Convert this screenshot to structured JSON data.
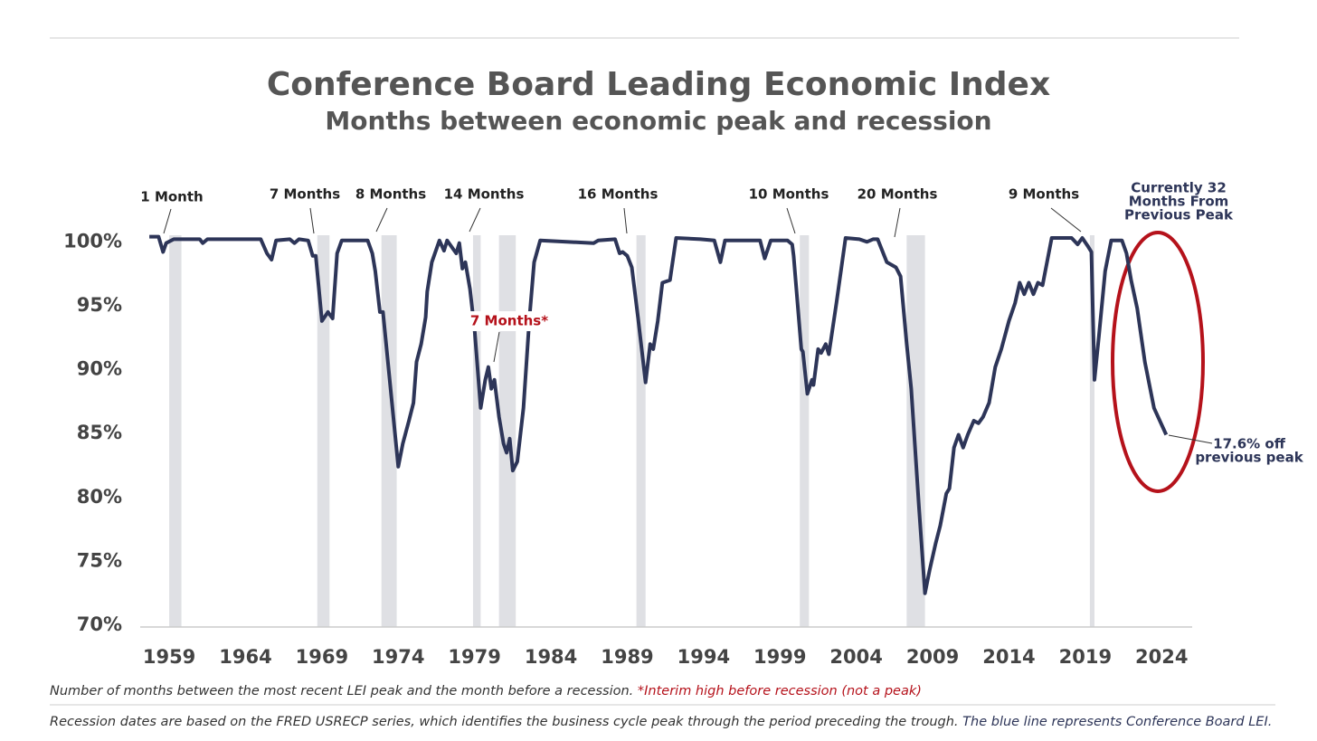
{
  "chart_data": {
    "type": "line",
    "title": "Conference Board Leading Economic  Index",
    "subtitle": "Months between economic peak and recession",
    "x": [
      1957.7,
      1958.3,
      1958.6,
      1958.8,
      1959.3,
      1961.0,
      1961.2,
      1961.5,
      1965.0,
      1965.4,
      1965.7,
      1966.0,
      1966.9,
      1967.2,
      1967.5,
      1968.1,
      1968.4,
      1968.6,
      1969.0,
      1969.4,
      1969.7,
      1970.0,
      1970.3,
      1972.0,
      1972.3,
      1972.5,
      1972.8,
      1973.0,
      1974.0,
      1974.3,
      1974.7,
      1975.0,
      1975.2,
      1975.5,
      1975.8,
      1975.9,
      1976.2,
      1976.7,
      1977.0,
      1977.2,
      1977.8,
      1978.0,
      1978.2,
      1978.4,
      1978.7,
      1979.0,
      1979.4,
      1979.7,
      1979.9,
      1980.1,
      1980.3,
      1980.6,
      1980.9,
      1981.1,
      1981.3,
      1981.5,
      1981.8,
      1982.2,
      1982.6,
      1982.9,
      1983.3,
      1986.8,
      1987.1,
      1988.2,
      1988.5,
      1988.7,
      1989.0,
      1989.3,
      1989.7,
      1990.2,
      1990.5,
      1990.7,
      1991.0,
      1991.3,
      1991.8,
      1992.2,
      1993.8,
      1994.7,
      1995.1,
      1995.4,
      1997.7,
      1998.0,
      1998.4,
      1999.5,
      1999.8,
      1999.9,
      2000.4,
      2000.5,
      2000.8,
      2001.1,
      2001.2,
      2001.5,
      2001.7,
      2002.0,
      2002.2,
      2002.7,
      2003.3,
      2004.2,
      2004.7,
      2005.1,
      2005.4,
      2006.0,
      2006.6,
      2006.9,
      2007.3,
      2007.6,
      2008.1,
      2008.5,
      2008.8,
      2009.2,
      2009.5,
      2009.9,
      2010.1,
      2010.4,
      2010.7,
      2011.0,
      2011.3,
      2011.7,
      2012.0,
      2012.3,
      2012.7,
      2013.1,
      2013.5,
      2014.0,
      2014.4,
      2014.7,
      2015.0,
      2015.3,
      2015.6,
      2015.9,
      2016.2,
      2016.8,
      2018.1,
      2018.5,
      2018.8,
      2019.2,
      2019.4,
      2019.6,
      2019.9,
      2020.3,
      2020.7,
      2021.4,
      2021.7,
      2022.0,
      2022.4,
      2022.9,
      2023.5,
      2024.3
    ],
    "values": [
      100.4,
      100.4,
      99.2,
      99.9,
      100.2,
      100.2,
      99.9,
      100.2,
      100.2,
      99.1,
      98.6,
      100.1,
      100.2,
      99.9,
      100.2,
      100.1,
      98.9,
      98.9,
      93.8,
      94.5,
      94.0,
      99.1,
      100.1,
      100.1,
      99.1,
      97.7,
      94.5,
      94.5,
      82.4,
      84.2,
      86.0,
      87.4,
      90.6,
      92.0,
      94.1,
      96.1,
      98.4,
      100.1,
      99.3,
      100.1,
      99.1,
      99.9,
      97.9,
      98.4,
      96.3,
      93.1,
      87.0,
      89.2,
      90.2,
      88.5,
      89.2,
      86.3,
      84.2,
      83.5,
      84.6,
      82.1,
      82.8,
      87.0,
      94.1,
      98.4,
      100.1,
      99.9,
      100.1,
      100.2,
      99.1,
      99.2,
      98.9,
      98.0,
      94.1,
      89.0,
      92.0,
      91.6,
      93.8,
      96.8,
      97.0,
      100.3,
      100.2,
      100.1,
      98.4,
      100.1,
      100.1,
      98.7,
      100.1,
      100.1,
      99.8,
      98.9,
      91.6,
      91.4,
      88.1,
      89.2,
      88.8,
      91.6,
      91.3,
      92.0,
      91.2,
      95.2,
      100.3,
      100.2,
      100.0,
      100.2,
      100.2,
      98.4,
      98.0,
      97.3,
      92.0,
      88.5,
      79.3,
      72.5,
      74.3,
      76.4,
      77.8,
      80.3,
      80.7,
      83.9,
      84.9,
      83.9,
      84.9,
      86.0,
      85.8,
      86.3,
      87.4,
      90.2,
      91.6,
      93.8,
      95.2,
      96.8,
      95.9,
      96.8,
      95.9,
      96.8,
      96.6,
      100.3,
      100.3,
      99.8,
      100.3,
      99.6,
      99.2,
      89.2,
      92.7,
      97.7,
      100.1,
      100.1,
      99.1,
      97.0,
      94.8,
      90.6,
      87.0,
      84.9
    ],
    "color": "#2d3558",
    "recessions": [
      [
        1959.0,
        1959.8
      ],
      [
        1968.7,
        1969.5
      ],
      [
        1972.9,
        1973.9
      ],
      [
        1978.9,
        1979.4
      ],
      [
        1980.6,
        1981.7
      ],
      [
        1989.6,
        1990.2
      ],
      [
        2000.3,
        2000.9
      ],
      [
        2007.3,
        2008.5
      ],
      [
        2019.3,
        2019.6
      ]
    ],
    "recession_color": "#dfe0e4",
    "xlim": [
      1957.1,
      2026.0
    ],
    "xticks": [
      1959,
      1964,
      1969,
      1974,
      1979,
      1984,
      1989,
      1994,
      1999,
      2004,
      2009,
      2014,
      2019,
      2024
    ],
    "ylim": [
      70,
      102
    ],
    "yticks": [
      {
        "value": 70,
        "label": "70%"
      },
      {
        "value": 75,
        "label": "75%"
      },
      {
        "value": 80,
        "label": "80%"
      },
      {
        "value": 85,
        "label": "85%"
      },
      {
        "value": 90,
        "label": "90%"
      },
      {
        "value": 95,
        "label": "95%"
      },
      {
        "value": 100,
        "label": "100%"
      }
    ],
    "grid": false,
    "annotations": [
      "1 Month",
      "7 Months",
      "8 Months",
      "14 Months",
      "7 Months*",
      "16 Months",
      "10 Months",
      "20 Months",
      "9 Months"
    ],
    "current_label": [
      "Currently 32",
      "Months From",
      "Previous Peak"
    ],
    "drop_label": [
      "17.6% off",
      "previous peak"
    ],
    "notes": [
      {
        "text": "Number of months between the most recent LEI peak and the month before a recession.",
        "highlight": "*Interim high before recession (not a peak)"
      },
      {
        "text": "Recession dates are based on the FRED USRECP series, which identifies the business cycle peak through the period preceding the trough.",
        "highlight": "The blue line represents Conference Board LEI."
      }
    ]
  }
}
